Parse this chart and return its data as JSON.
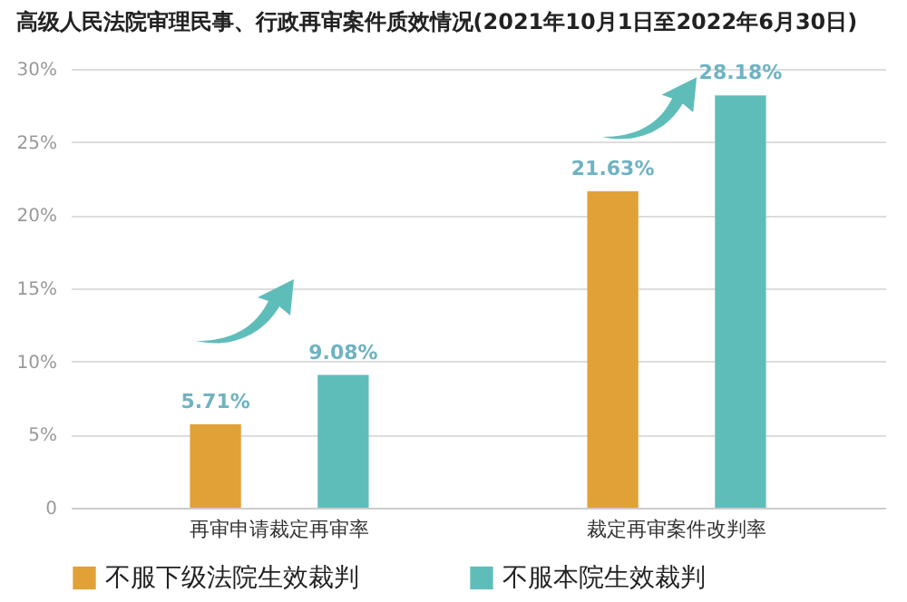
{
  "chart_data": {
    "type": "bar",
    "title": "高级人民法院审理民事、行政再审案件质效情况(2021年10月1日至2022年6月30日)",
    "categories": [
      "再审申请裁定再审率",
      "裁定再审案件改判率"
    ],
    "series": [
      {
        "name": "不服下级法院生效裁判",
        "color": "#e0a137",
        "values": [
          5.71,
          21.63
        ],
        "value_labels": [
          "5.71%",
          "21.63%"
        ]
      },
      {
        "name": "不服本院生效裁判",
        "color": "#5fbdb9",
        "values": [
          9.08,
          28.18
        ],
        "value_labels": [
          "9.08%",
          "28.18%"
        ]
      }
    ],
    "ylim": [
      0,
      30
    ],
    "yticks": [
      {
        "value": 0,
        "label": "0"
      },
      {
        "value": 5,
        "label": "5%"
      },
      {
        "value": 10,
        "label": "10%"
      },
      {
        "value": 15,
        "label": "15%"
      },
      {
        "value": 20,
        "label": "20%"
      },
      {
        "value": 25,
        "label": "25%"
      },
      {
        "value": 30,
        "label": "30%"
      }
    ],
    "grid": "y",
    "legend": "bottom"
  }
}
